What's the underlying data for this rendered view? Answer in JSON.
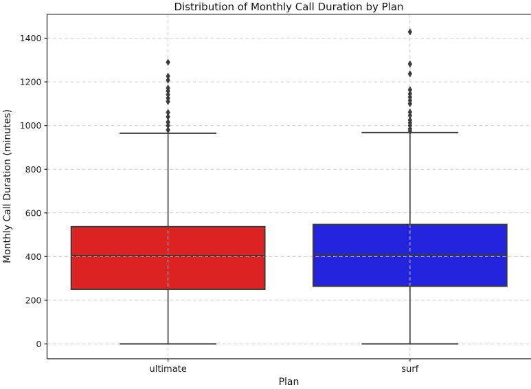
{
  "chart_data": {
    "type": "boxplot",
    "title": "Distribution of Monthly Call Duration by Plan",
    "xlabel": "Plan",
    "ylabel": "Monthly Call Duration (minutes)",
    "categories": [
      "ultimate",
      "surf"
    ],
    "yticks": [
      0,
      200,
      400,
      600,
      800,
      1000,
      1200,
      1400
    ],
    "ylim": [
      -68,
      1510
    ],
    "xlim": [
      -0.5,
      1.5
    ],
    "legend": "none",
    "grid": {
      "visible": true,
      "linestyle": "dashed",
      "color": "#cbcbcb",
      "axes": "both"
    },
    "box_width": 0.8,
    "line_color": "#3b3b3b",
    "flier_marker": "diamond",
    "flier_color": "#3d3d3d",
    "series": [
      {
        "name": "ultimate",
        "fill_color": "#dc2222",
        "q1": 250,
        "median": 404,
        "q3": 537,
        "whisker_low": 0,
        "whisker_high": 965,
        "outliers": [
          1290,
          1226,
          1208,
          1172,
          1158,
          1142,
          1126,
          1110,
          1060,
          1040,
          1016,
          1000,
          980
        ]
      },
      {
        "name": "surf",
        "fill_color": "#2323dd",
        "q1": 264,
        "median": 410,
        "q3": 547,
        "whisker_low": 0,
        "whisker_high": 968,
        "outliers": [
          1429,
          1282,
          1237,
          1164,
          1146,
          1130,
          1115,
          1100,
          1062,
          1046,
          1025,
          1012,
          1000,
          985,
          975
        ]
      }
    ]
  }
}
